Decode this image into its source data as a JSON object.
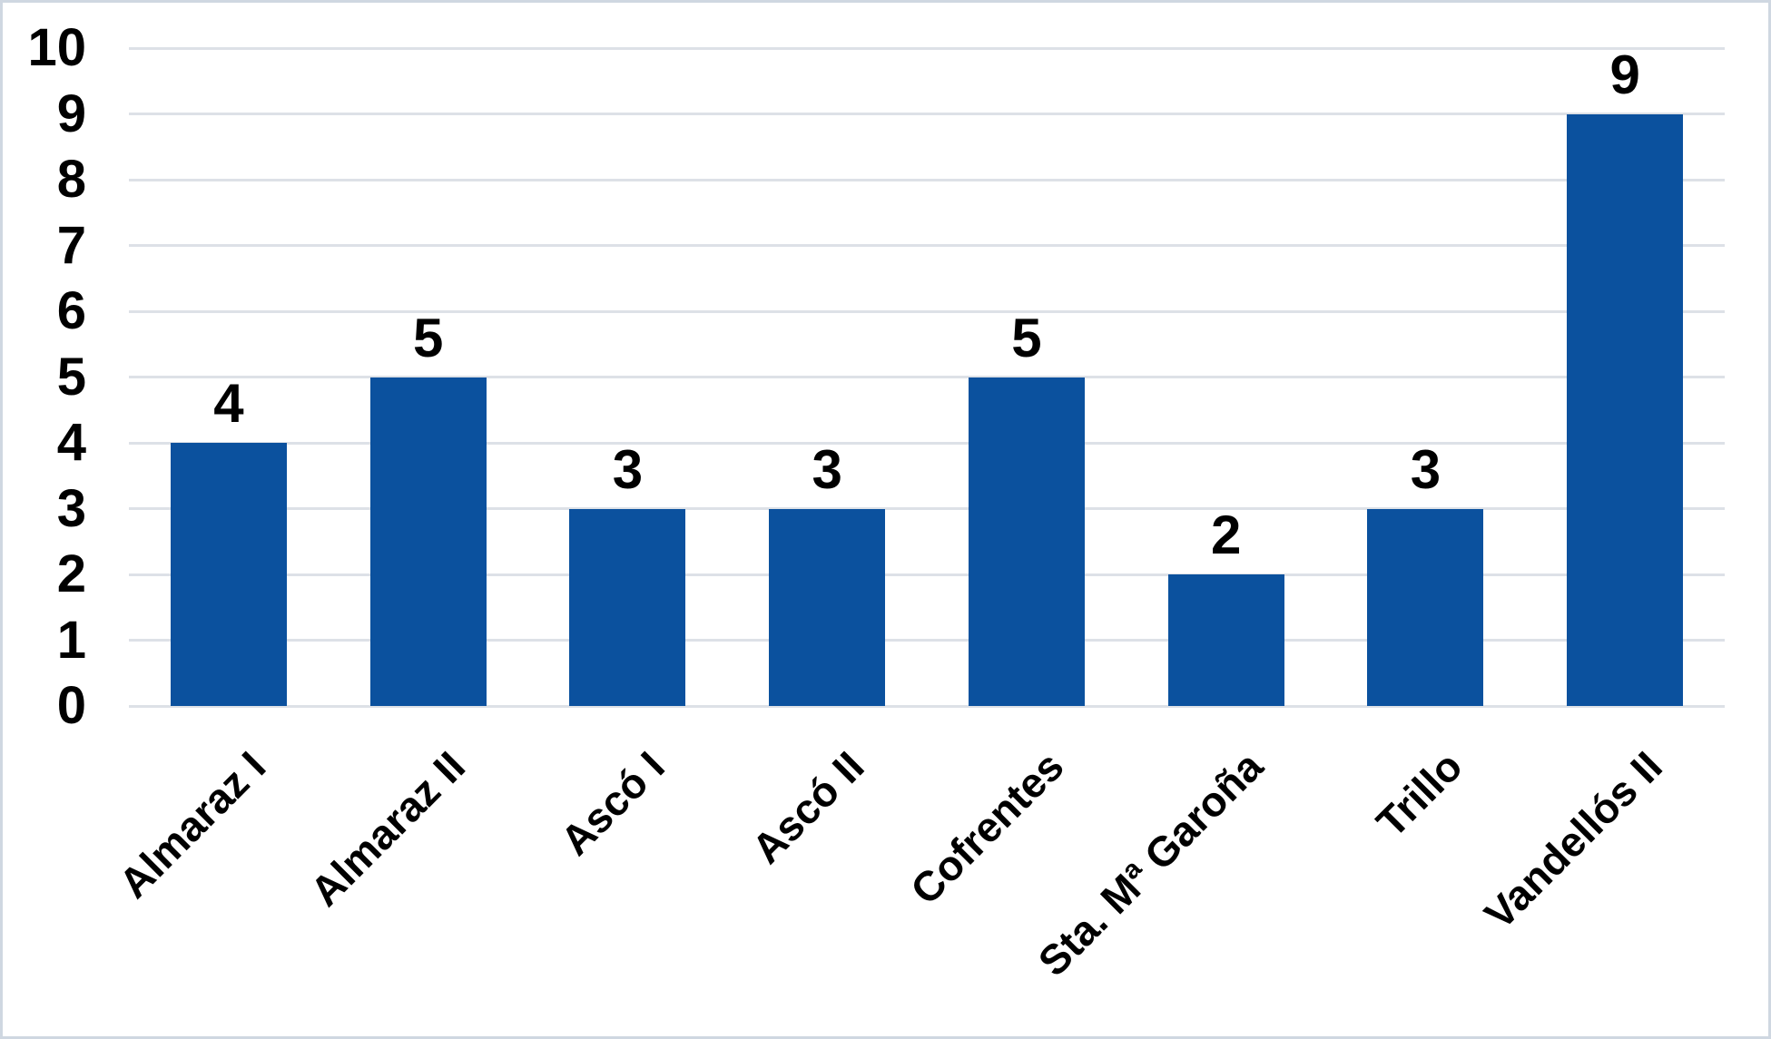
{
  "chart_data": {
    "type": "bar",
    "categories": [
      "Almaraz I",
      "Almaraz II",
      "Ascó I",
      "Ascó II",
      "Cofrentes",
      "Sta. Mª Garoña",
      "Trillo",
      "Vandellós II"
    ],
    "values": [
      4,
      5,
      3,
      3,
      5,
      2,
      3,
      9
    ],
    "data_labels": [
      4,
      5,
      3,
      3,
      5,
      2,
      3,
      9
    ],
    "yticks": [
      0,
      1,
      2,
      3,
      4,
      5,
      6,
      7,
      8,
      9,
      10
    ],
    "ylim": [
      0,
      10
    ],
    "ytick_step": 1,
    "grid": true,
    "legend": false,
    "x_tick_rotation_deg": 45,
    "colors": {
      "bar": "#0B519E",
      "gridline": "#DDE1E7",
      "text": "#000000",
      "background": "#FFFFFF",
      "border": "#CFD7E1"
    }
  }
}
